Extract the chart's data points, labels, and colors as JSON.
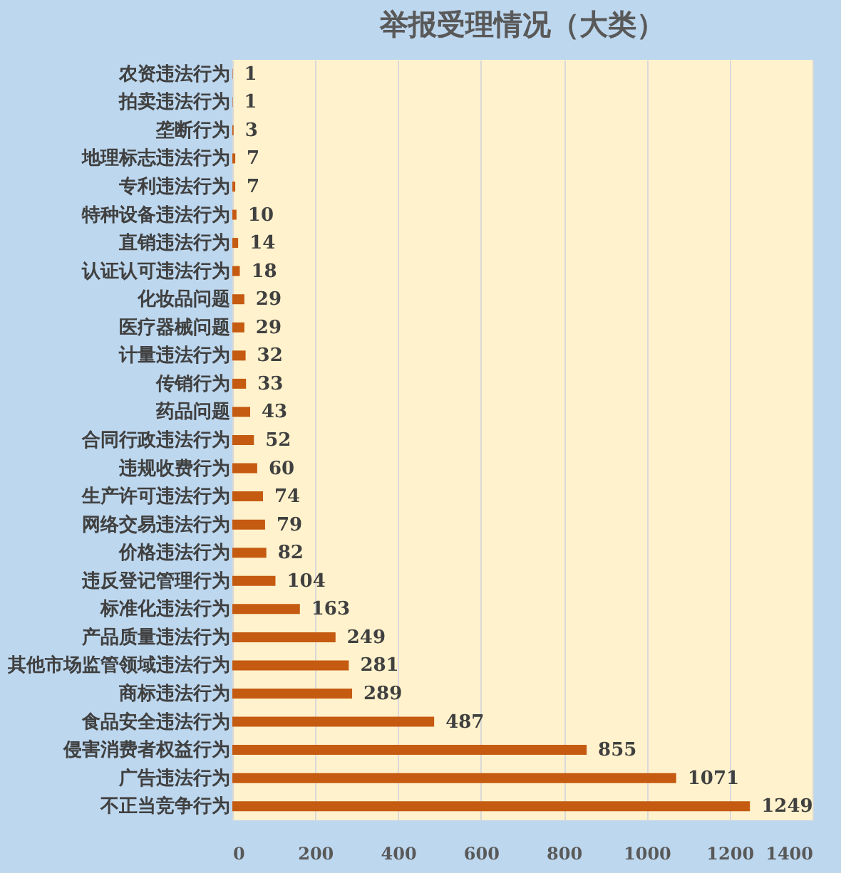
{
  "chart_data": {
    "type": "bar",
    "orientation": "horizontal",
    "title": "举报受理情况（大类）",
    "categories": [
      "农资违法行为",
      "拍卖违法行为",
      "垄断行为",
      "地理标志违法行为",
      "专利违法行为",
      "特种设备违法行为",
      "直销违法行为",
      "认证认可违法行为",
      "化妆品问题",
      "医疗器械问题",
      "计量违法行为",
      "传销行为",
      "药品问题",
      "合同行政违法行为",
      "违规收费行为",
      "生产许可违法行为",
      "网络交易违法行为",
      "价格违法行为",
      "违反登记管理行为",
      "标准化违法行为",
      "产品质量违法行为",
      "其他市场监管领域违法行为",
      "商标违法行为",
      "食品安全违法行为",
      "侵害消费者权益行为",
      "广告违法行为",
      "不正当竞争行为"
    ],
    "values": [
      1,
      1,
      3,
      7,
      7,
      10,
      14,
      18,
      29,
      29,
      32,
      33,
      43,
      52,
      60,
      74,
      79,
      82,
      104,
      163,
      249,
      281,
      289,
      487,
      855,
      1071,
      1249
    ],
    "color": "#c55a11",
    "data_labels": true,
    "grid": "x",
    "xlim": [
      0,
      1400
    ],
    "xticks": [
      0,
      200,
      400,
      600,
      800,
      1000,
      1200,
      1400
    ]
  }
}
